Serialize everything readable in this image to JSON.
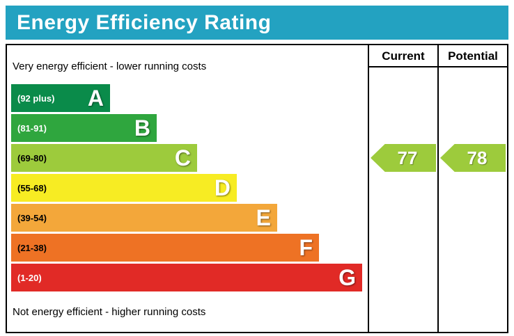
{
  "title": "Energy Efficiency Rating",
  "header": {
    "current": "Current",
    "potential": "Potential"
  },
  "notes": {
    "top": "Very energy efficient - lower running costs",
    "bottom": "Not energy efficient - higher running costs"
  },
  "bands": [
    {
      "letter": "A",
      "range": "(92 plus)",
      "color": "#0A8B4A",
      "label_color": "#ffffff"
    },
    {
      "letter": "B",
      "range": "(81-91)",
      "color": "#2FA63E",
      "label_color": "#ffffff"
    },
    {
      "letter": "C",
      "range": "(69-80)",
      "color": "#9DCB3C",
      "label_color": "#000000"
    },
    {
      "letter": "D",
      "range": "(55-68)",
      "color": "#F7EC23",
      "label_color": "#000000"
    },
    {
      "letter": "E",
      "range": "(39-54)",
      "color": "#F3A73A",
      "label_color": "#000000"
    },
    {
      "letter": "F",
      "range": "(21-38)",
      "color": "#EE7224",
      "label_color": "#000000"
    },
    {
      "letter": "G",
      "range": "(1-20)",
      "color": "#E12A26",
      "label_color": "#ffffff"
    }
  ],
  "ratings": {
    "current": {
      "value": "77",
      "band": "C",
      "color": "#9DCB3C"
    },
    "potential": {
      "value": "78",
      "band": "C",
      "color": "#9DCB3C"
    }
  },
  "colors": {
    "title_bg": "#23A2C1",
    "title_text": "#ffffff",
    "border": "#000000"
  },
  "chart_data": {
    "type": "bar",
    "title": "Energy Efficiency Rating",
    "categories": [
      "A (92 plus)",
      "B (81-91)",
      "C (69-80)",
      "D (55-68)",
      "E (39-54)",
      "F (21-38)",
      "G (1-20)"
    ],
    "band_colors": [
      "#0A8B4A",
      "#2FA63E",
      "#9DCB3C",
      "#F7EC23",
      "#F3A73A",
      "#EE7224",
      "#E12A26"
    ],
    "bar_relative_widths": [
      142,
      209,
      267,
      324,
      382,
      442,
      504
    ],
    "series": [
      {
        "name": "Current",
        "value": 77,
        "band": "C"
      },
      {
        "name": "Potential",
        "value": 78,
        "band": "C"
      }
    ],
    "top_annotation": "Very energy efficient - lower running costs",
    "bottom_annotation": "Not energy efficient - higher running costs",
    "legend_position": "none",
    "grid": false
  }
}
